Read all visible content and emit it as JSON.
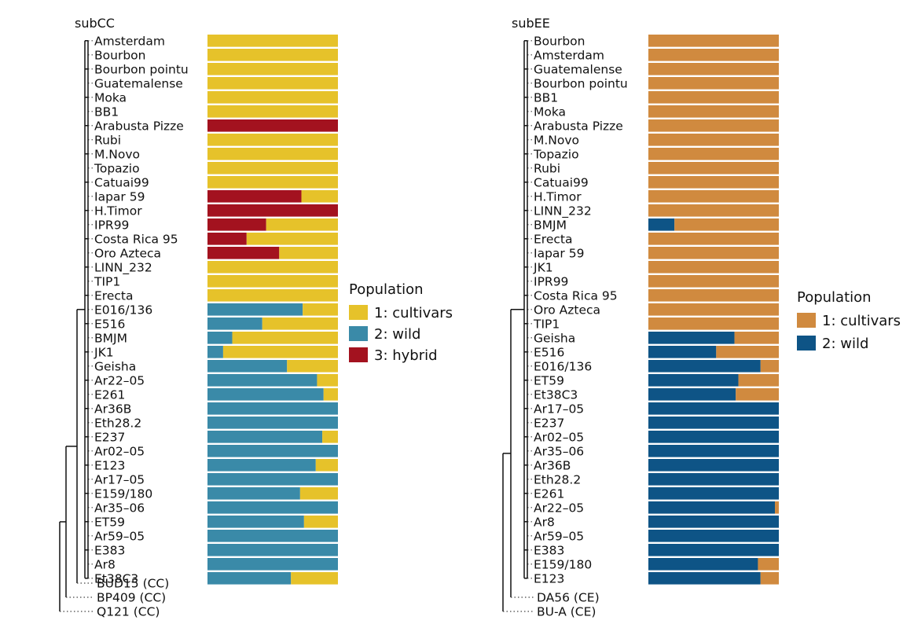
{
  "colors": {
    "cultivars_left": "#E6C22A",
    "wild_left": "#3A8AA8",
    "hybrid": "#A3121F",
    "cultivars_right": "#D08A3F",
    "wild_right": "#0E5486"
  },
  "chart_data": [
    {
      "type": "bar",
      "stacked": true,
      "orientation": "horizontal",
      "title": "subCC",
      "legend": {
        "title": "Population",
        "placement": "right",
        "entries": [
          "1: cultivars",
          "2: wild",
          "3: hybrid"
        ]
      },
      "series_names": [
        "1: cultivars",
        "2: wild",
        "3: hybrid"
      ],
      "bars": [
        {
          "label": "Amsterdam",
          "values": [
            1.0,
            0.0,
            0.0
          ]
        },
        {
          "label": "Bourbon",
          "values": [
            1.0,
            0.0,
            0.0
          ]
        },
        {
          "label": "Bourbon pointu",
          "values": [
            1.0,
            0.0,
            0.0
          ]
        },
        {
          "label": "Guatemalense",
          "values": [
            1.0,
            0.0,
            0.0
          ]
        },
        {
          "label": "Moka",
          "values": [
            1.0,
            0.0,
            0.0
          ]
        },
        {
          "label": "BB1",
          "values": [
            1.0,
            0.0,
            0.0
          ]
        },
        {
          "label": "Arabusta Pizze",
          "values": [
            0.0,
            0.0,
            1.0
          ]
        },
        {
          "label": "Rubi",
          "values": [
            1.0,
            0.0,
            0.0
          ]
        },
        {
          "label": "M.Novo",
          "values": [
            1.0,
            0.0,
            0.0
          ]
        },
        {
          "label": "Topazio",
          "values": [
            1.0,
            0.0,
            0.0
          ]
        },
        {
          "label": "Catuai99",
          "values": [
            1.0,
            0.0,
            0.0
          ]
        },
        {
          "label": "Iapar 59",
          "values": [
            0.28,
            0.0,
            0.72
          ]
        },
        {
          "label": "H.Timor",
          "values": [
            0.0,
            0.0,
            1.0
          ]
        },
        {
          "label": "IPR99",
          "values": [
            0.55,
            0.0,
            0.45
          ]
        },
        {
          "label": "Costa Rica 95",
          "values": [
            0.7,
            0.0,
            0.3
          ]
        },
        {
          "label": "Oro Azteca",
          "values": [
            0.45,
            0.0,
            0.55
          ]
        },
        {
          "label": "LINN_232",
          "values": [
            1.0,
            0.0,
            0.0
          ]
        },
        {
          "label": "TIP1",
          "values": [
            1.0,
            0.0,
            0.0
          ]
        },
        {
          "label": "Erecta",
          "values": [
            1.0,
            0.0,
            0.0
          ]
        },
        {
          "label": "E016/136",
          "values": [
            0.27,
            0.73,
            0.0
          ]
        },
        {
          "label": "E516",
          "values": [
            0.58,
            0.42,
            0.0
          ]
        },
        {
          "label": "BMJM",
          "values": [
            0.81,
            0.19,
            0.0
          ]
        },
        {
          "label": "JK1",
          "values": [
            0.88,
            0.12,
            0.0
          ]
        },
        {
          "label": "Geisha",
          "values": [
            0.39,
            0.61,
            0.0
          ]
        },
        {
          "label": "Ar22–05",
          "values": [
            0.16,
            0.84,
            0.0
          ]
        },
        {
          "label": "E261",
          "values": [
            0.11,
            0.89,
            0.0
          ]
        },
        {
          "label": "Ar36B",
          "values": [
            0.0,
            1.0,
            0.0
          ]
        },
        {
          "label": "Eth28.2",
          "values": [
            0.0,
            1.0,
            0.0
          ]
        },
        {
          "label": "E237",
          "values": [
            0.12,
            0.88,
            0.0
          ]
        },
        {
          "label": "Ar02–05",
          "values": [
            0.0,
            1.0,
            0.0
          ]
        },
        {
          "label": "E123",
          "values": [
            0.17,
            0.83,
            0.0
          ]
        },
        {
          "label": "Ar17–05",
          "values": [
            0.0,
            1.0,
            0.0
          ]
        },
        {
          "label": "E159/180",
          "values": [
            0.29,
            0.71,
            0.0
          ]
        },
        {
          "label": "Ar35–06",
          "values": [
            0.0,
            1.0,
            0.0
          ]
        },
        {
          "label": "ET59",
          "values": [
            0.26,
            0.74,
            0.0
          ]
        },
        {
          "label": "Ar59–05",
          "values": [
            0.0,
            1.0,
            0.0
          ]
        },
        {
          "label": "E383",
          "values": [
            0.0,
            1.0,
            0.0
          ]
        },
        {
          "label": "Ar8",
          "values": [
            0.0,
            1.0,
            0.0
          ]
        },
        {
          "label": "Et38C3",
          "values": [
            0.36,
            0.64,
            0.0
          ]
        }
      ],
      "outgroups": [
        "BUD15 (CC)",
        "BP409 (CC)",
        "Q121 (CC)"
      ]
    },
    {
      "type": "bar",
      "stacked": true,
      "orientation": "horizontal",
      "title": "subEE",
      "legend": {
        "title": "Population",
        "placement": "right",
        "entries": [
          "1: cultivars",
          "2: wild"
        ]
      },
      "series_names": [
        "1: cultivars",
        "2: wild"
      ],
      "bars": [
        {
          "label": "Bourbon",
          "values": [
            1.0,
            0.0
          ]
        },
        {
          "label": "Amsterdam",
          "values": [
            1.0,
            0.0
          ]
        },
        {
          "label": "Guatemalense",
          "values": [
            1.0,
            0.0
          ]
        },
        {
          "label": "Bourbon pointu",
          "values": [
            1.0,
            0.0
          ]
        },
        {
          "label": "BB1",
          "values": [
            1.0,
            0.0
          ]
        },
        {
          "label": "Moka",
          "values": [
            1.0,
            0.0
          ]
        },
        {
          "label": "Arabusta Pizze",
          "values": [
            1.0,
            0.0
          ]
        },
        {
          "label": "M.Novo",
          "values": [
            1.0,
            0.0
          ]
        },
        {
          "label": "Topazio",
          "values": [
            1.0,
            0.0
          ]
        },
        {
          "label": "Rubi",
          "values": [
            1.0,
            0.0
          ]
        },
        {
          "label": "Catuai99",
          "values": [
            1.0,
            0.0
          ]
        },
        {
          "label": "H.Timor",
          "values": [
            1.0,
            0.0
          ]
        },
        {
          "label": "LINN_232",
          "values": [
            1.0,
            0.0
          ]
        },
        {
          "label": "BMJM",
          "values": [
            0.8,
            0.2
          ]
        },
        {
          "label": "Erecta",
          "values": [
            1.0,
            0.0
          ]
        },
        {
          "label": "Iapar 59",
          "values": [
            1.0,
            0.0
          ]
        },
        {
          "label": "JK1",
          "values": [
            1.0,
            0.0
          ]
        },
        {
          "label": "IPR99",
          "values": [
            1.0,
            0.0
          ]
        },
        {
          "label": "Costa Rica 95",
          "values": [
            1.0,
            0.0
          ]
        },
        {
          "label": "Oro Azteca",
          "values": [
            1.0,
            0.0
          ]
        },
        {
          "label": "TIP1",
          "values": [
            1.0,
            0.0
          ]
        },
        {
          "label": "Geisha",
          "values": [
            0.34,
            0.66
          ]
        },
        {
          "label": "E516",
          "values": [
            0.48,
            0.52
          ]
        },
        {
          "label": "E016/136",
          "values": [
            0.14,
            0.86
          ]
        },
        {
          "label": "ET59",
          "values": [
            0.31,
            0.69
          ]
        },
        {
          "label": "Et38C3",
          "values": [
            0.33,
            0.67
          ]
        },
        {
          "label": "Ar17–05",
          "values": [
            0.0,
            1.0
          ]
        },
        {
          "label": "E237",
          "values": [
            0.0,
            1.0
          ]
        },
        {
          "label": "Ar02–05",
          "values": [
            0.0,
            1.0
          ]
        },
        {
          "label": "Ar35–06",
          "values": [
            0.0,
            1.0
          ]
        },
        {
          "label": "Ar36B",
          "values": [
            0.0,
            1.0
          ]
        },
        {
          "label": "Eth28.2",
          "values": [
            0.0,
            1.0
          ]
        },
        {
          "label": "E261",
          "values": [
            0.0,
            1.0
          ]
        },
        {
          "label": "Ar22–05",
          "values": [
            0.03,
            0.97
          ]
        },
        {
          "label": "Ar8",
          "values": [
            0.0,
            1.0
          ]
        },
        {
          "label": "Ar59–05",
          "values": [
            0.0,
            1.0
          ]
        },
        {
          "label": "E383",
          "values": [
            0.0,
            1.0
          ]
        },
        {
          "label": "E159/180",
          "values": [
            0.16,
            0.84
          ]
        },
        {
          "label": "E123",
          "values": [
            0.14,
            0.86
          ]
        }
      ],
      "outgroups": [
        "DA56 (CE)",
        "BU-A (CE)"
      ]
    }
  ]
}
